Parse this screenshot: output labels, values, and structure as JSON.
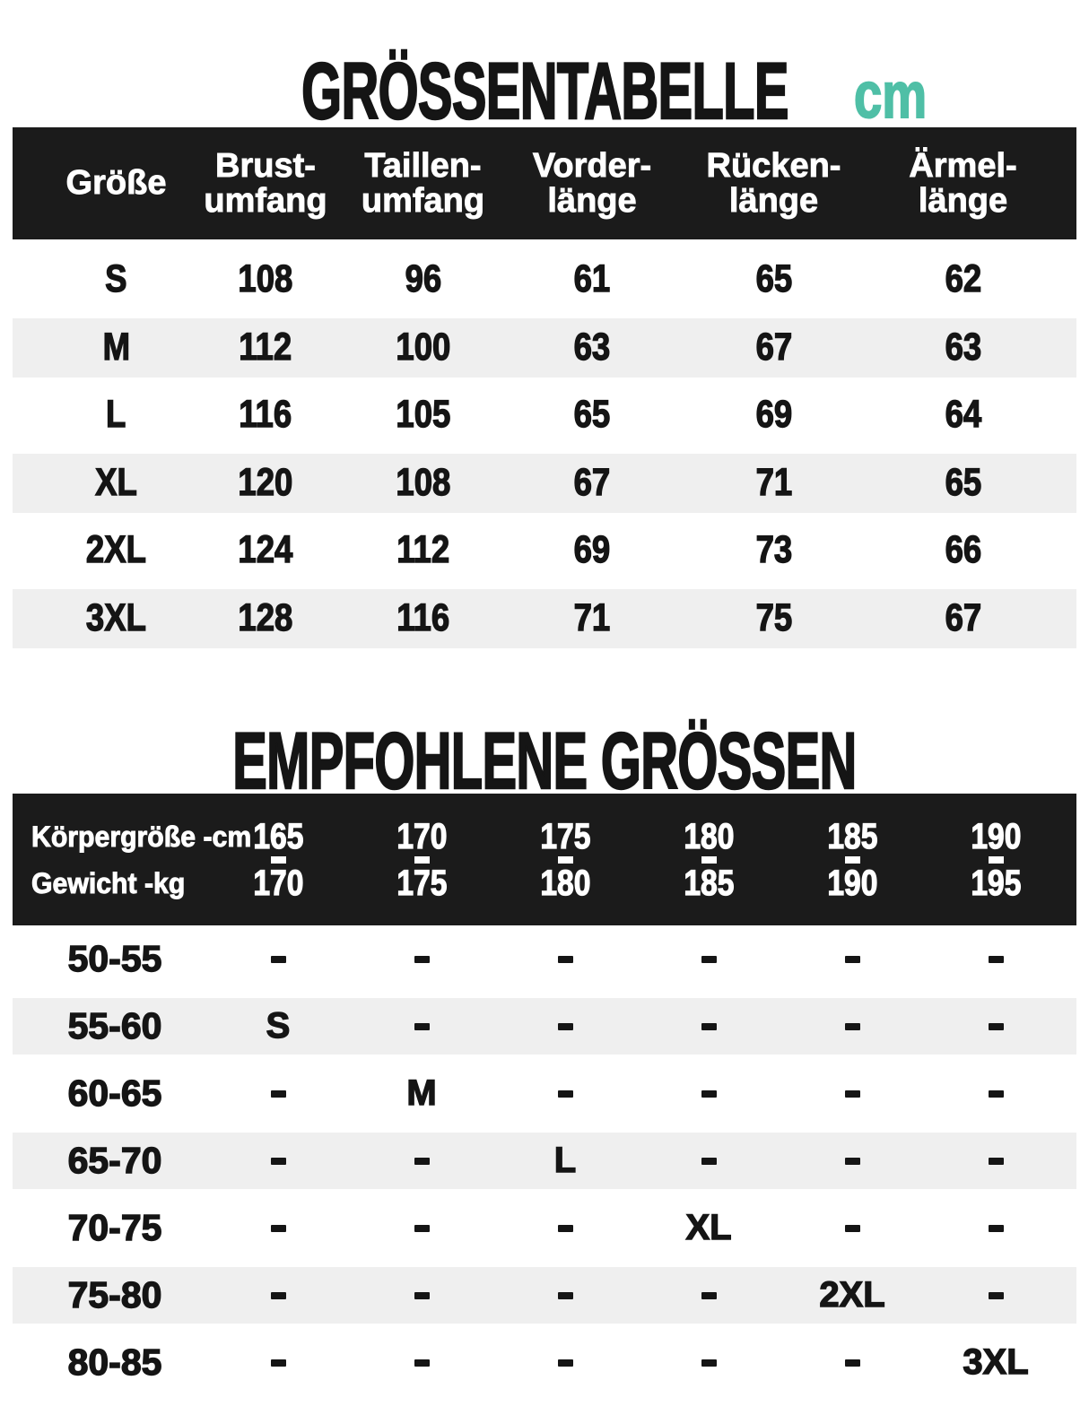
{
  "colors": {
    "accent": "#4FBFA6",
    "header_bg": "#1B1B1B",
    "alt_row_bg": "#EFEFEF",
    "text": "#151515"
  },
  "title": {
    "text": "GRÖSSENTABELLE",
    "unit": "cm"
  },
  "section2_title": "EMPFOHLENE GRÖSSEN",
  "chart_data": [
    {
      "type": "table",
      "name": "size-measurements",
      "title": "GRÖSSENTABELLE",
      "unit": "cm",
      "columns": [
        {
          "label": [
            "Größe"
          ]
        },
        {
          "label": [
            "Brust-",
            "umfang"
          ]
        },
        {
          "label": [
            "Taillen-",
            "umfang"
          ]
        },
        {
          "label": [
            "Vorder-",
            "länge"
          ]
        },
        {
          "label": [
            "Rücken-",
            "länge"
          ]
        },
        {
          "label": [
            "Ärmel-",
            "länge"
          ]
        }
      ],
      "rows": [
        {
          "size": "S",
          "values": [
            "108",
            "96",
            "61",
            "65",
            "62"
          ]
        },
        {
          "size": "M",
          "values": [
            "112",
            "100",
            "63",
            "67",
            "63"
          ]
        },
        {
          "size": "L",
          "values": [
            "116",
            "105",
            "65",
            "69",
            "64"
          ]
        },
        {
          "size": "XL",
          "values": [
            "120",
            "108",
            "67",
            "71",
            "65"
          ]
        },
        {
          "size": "2XL",
          "values": [
            "124",
            "112",
            "69",
            "73",
            "66"
          ]
        },
        {
          "size": "3XL",
          "values": [
            "128",
            "116",
            "71",
            "75",
            "67"
          ]
        }
      ]
    },
    {
      "type": "table",
      "name": "recommended-sizes",
      "title": "EMPFOHLENE GRÖSSEN",
      "corner_labels": {
        "top": "Körpergröße -cm",
        "bottom": "Gewicht -kg"
      },
      "height_columns": [
        {
          "from": "165",
          "to": "170"
        },
        {
          "from": "170",
          "to": "175"
        },
        {
          "from": "175",
          "to": "180"
        },
        {
          "from": "180",
          "to": "185"
        },
        {
          "from": "185",
          "to": "190"
        },
        {
          "from": "190",
          "to": "195"
        }
      ],
      "rows": [
        {
          "weight": "50-55",
          "cells": [
            "-",
            "-",
            "-",
            "-",
            "-",
            "-"
          ]
        },
        {
          "weight": "55-60",
          "cells": [
            "S",
            "-",
            "-",
            "-",
            "-",
            "-"
          ]
        },
        {
          "weight": "60-65",
          "cells": [
            "-",
            "M",
            "-",
            "-",
            "-",
            "-"
          ]
        },
        {
          "weight": "65-70",
          "cells": [
            "-",
            "-",
            "L",
            "-",
            "-",
            "-"
          ]
        },
        {
          "weight": "70-75",
          "cells": [
            "-",
            "-",
            "-",
            "XL",
            "-",
            "-"
          ]
        },
        {
          "weight": "75-80",
          "cells": [
            "-",
            "-",
            "-",
            "-",
            "2XL",
            "-"
          ]
        },
        {
          "weight": "80-85",
          "cells": [
            "-",
            "-",
            "-",
            "-",
            "-",
            "3XL"
          ]
        }
      ]
    }
  ]
}
